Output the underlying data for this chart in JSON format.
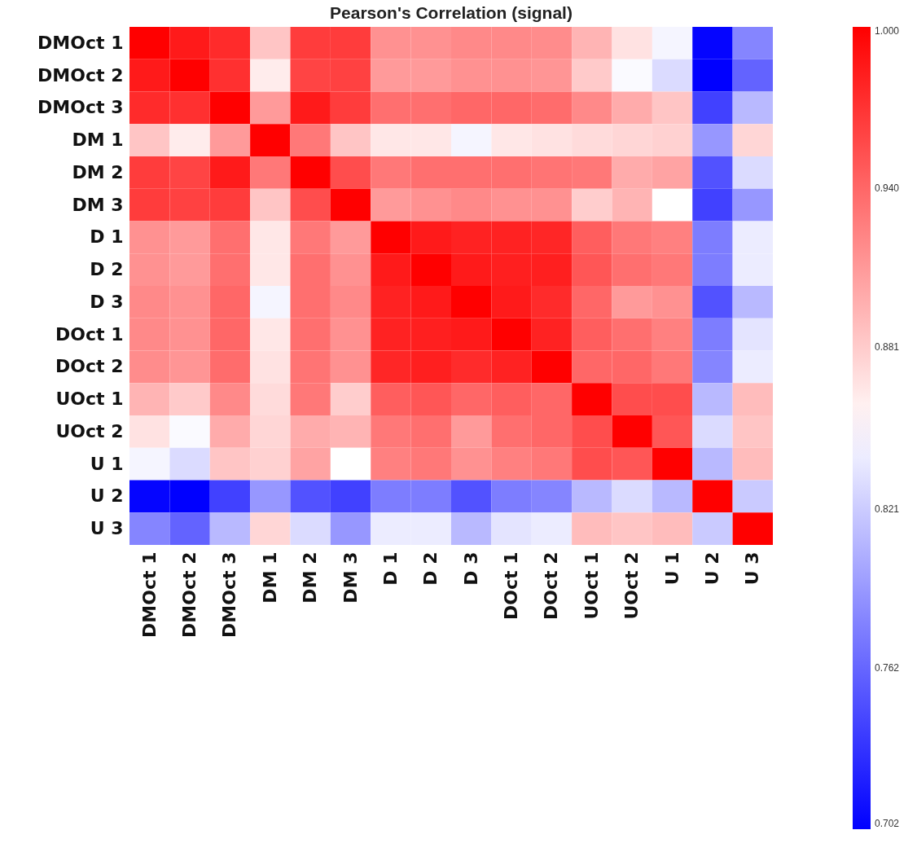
{
  "chart_data": {
    "type": "heatmap",
    "title": "Pearson's Correlation (signal)",
    "categories": [
      "DMOct 1",
      "DMOct 2",
      "DMOct 3",
      "DM 1",
      "DM 2",
      "DM 3",
      "D 1",
      "D 2",
      "D 3",
      "DOct 1",
      "DOct 2",
      "UOct 1",
      "UOct 2",
      "U 1",
      "U 2",
      "U 3"
    ],
    "y_categories": [
      "DMOct 1",
      "DMOct 2",
      "DMOct 3",
      "DM 1",
      "DM 2",
      "DM 3",
      "D 1",
      "D 2",
      "D 3",
      "DOct 1",
      "DOct 2",
      "UOct 1",
      "UOct 2",
      "U 1",
      "U 2",
      "U 3"
    ],
    "cells": [
      [
        1.0,
        0.985,
        0.975,
        0.885,
        0.965,
        0.965,
        0.915,
        0.915,
        0.92,
        0.92,
        0.918,
        0.895,
        0.868,
        0.845,
        0.705,
        0.78
      ],
      [
        0.985,
        1.0,
        0.972,
        0.862,
        0.96,
        0.962,
        0.91,
        0.91,
        0.915,
        0.915,
        0.913,
        0.882,
        0.848,
        0.83,
        0.702,
        0.76
      ],
      [
        0.975,
        0.972,
        1.0,
        0.91,
        0.985,
        0.965,
        0.935,
        0.935,
        0.94,
        0.94,
        0.937,
        0.92,
        0.9,
        0.885,
        0.74,
        0.81
      ],
      [
        0.885,
        0.862,
        0.91,
        1.0,
        0.93,
        0.885,
        0.865,
        0.865,
        0.845,
        0.865,
        0.868,
        0.872,
        0.875,
        0.878,
        0.79,
        0.875
      ],
      [
        0.965,
        0.96,
        0.985,
        0.93,
        1.0,
        0.955,
        0.93,
        0.935,
        0.935,
        0.935,
        0.932,
        0.93,
        0.9,
        0.905,
        0.75,
        0.83
      ],
      [
        0.965,
        0.962,
        0.965,
        0.885,
        0.955,
        1.0,
        0.91,
        0.915,
        0.92,
        0.915,
        0.915,
        0.88,
        0.895,
        0.851,
        0.74,
        0.79
      ],
      [
        0.915,
        0.91,
        0.935,
        0.865,
        0.93,
        0.91,
        1.0,
        0.985,
        0.98,
        0.98,
        0.978,
        0.945,
        0.93,
        0.925,
        0.775,
        0.84
      ],
      [
        0.915,
        0.91,
        0.935,
        0.865,
        0.935,
        0.915,
        0.985,
        1.0,
        0.985,
        0.982,
        0.982,
        0.95,
        0.935,
        0.93,
        0.775,
        0.84
      ],
      [
        0.92,
        0.915,
        0.94,
        0.845,
        0.935,
        0.92,
        0.98,
        0.985,
        1.0,
        0.985,
        0.975,
        0.94,
        0.91,
        0.915,
        0.75,
        0.81
      ],
      [
        0.92,
        0.915,
        0.94,
        0.865,
        0.935,
        0.915,
        0.98,
        0.982,
        0.985,
        1.0,
        0.98,
        0.945,
        0.935,
        0.925,
        0.775,
        0.835
      ],
      [
        0.918,
        0.913,
        0.937,
        0.868,
        0.932,
        0.915,
        0.978,
        0.982,
        0.975,
        0.98,
        1.0,
        0.94,
        0.94,
        0.93,
        0.78,
        0.84
      ],
      [
        0.895,
        0.882,
        0.92,
        0.872,
        0.93,
        0.88,
        0.945,
        0.95,
        0.94,
        0.945,
        0.94,
        1.0,
        0.955,
        0.955,
        0.81,
        0.89
      ],
      [
        0.868,
        0.848,
        0.9,
        0.875,
        0.9,
        0.895,
        0.93,
        0.935,
        0.91,
        0.935,
        0.94,
        0.955,
        1.0,
        0.95,
        0.83,
        0.885
      ],
      [
        0.845,
        0.83,
        0.885,
        0.878,
        0.905,
        0.851,
        0.925,
        0.93,
        0.915,
        0.925,
        0.93,
        0.955,
        0.95,
        1.0,
        0.81,
        0.89
      ],
      [
        0.705,
        0.702,
        0.74,
        0.79,
        0.75,
        0.74,
        0.775,
        0.775,
        0.75,
        0.775,
        0.78,
        0.81,
        0.83,
        0.81,
        1.0,
        0.82
      ],
      [
        0.78,
        0.76,
        0.81,
        0.875,
        0.83,
        0.79,
        0.84,
        0.84,
        0.81,
        0.835,
        0.84,
        0.89,
        0.885,
        0.89,
        0.82,
        1.0
      ]
    ],
    "clim": [
      0.702,
      1.0
    ],
    "cticks": [
      {
        "value": 1.0,
        "label": "1.000"
      },
      {
        "value": 0.94,
        "label": "0.940"
      },
      {
        "value": 0.881,
        "label": "0.881"
      },
      {
        "value": 0.821,
        "label": "0.821"
      },
      {
        "value": 0.762,
        "label": "0.762"
      },
      {
        "value": 0.702,
        "label": "0.702"
      }
    ]
  }
}
